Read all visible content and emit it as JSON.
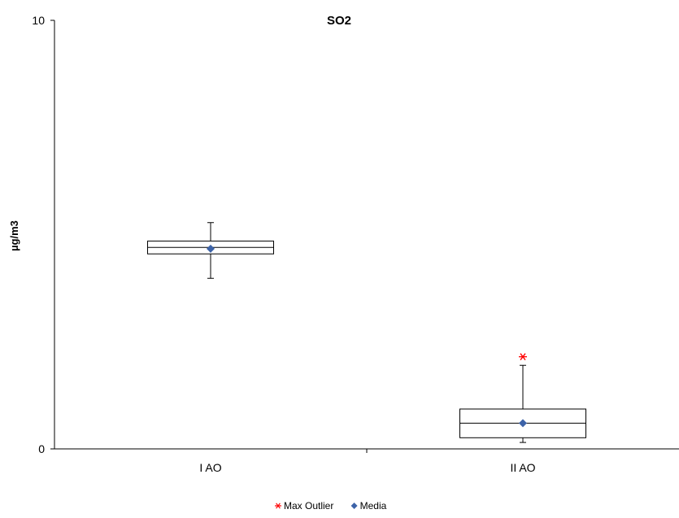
{
  "chart_data": {
    "type": "boxplot",
    "title": "SO2",
    "ylabel": "µg/m3",
    "ylim": [
      0,
      10
    ],
    "y_ticks": [
      "0",
      "10"
    ],
    "categories": [
      "I AO",
      "II AO"
    ],
    "boxes": [
      {
        "category": "I AO",
        "whisker_low": 3.98,
        "q1": 4.55,
        "median": 4.7,
        "q3": 4.85,
        "whisker_high": 5.28,
        "mean": 4.67,
        "max_outlier": null
      },
      {
        "category": "II AO",
        "whisker_low": 0.15,
        "q1": 0.26,
        "median": 0.6,
        "q3": 0.93,
        "whisker_high": 1.95,
        "mean": 0.6,
        "max_outlier": 2.15
      }
    ],
    "legend": {
      "position": "bottom-center",
      "items": [
        {
          "label": "Max Outlier",
          "marker": "asterisk",
          "color": "#ff0000"
        },
        {
          "label": "Media",
          "marker": "diamond",
          "color": "#3d63a8"
        }
      ]
    },
    "colors": {
      "box": "#000000",
      "mean": "#3d63a8",
      "outlier": "#ff0000"
    },
    "grid": false
  }
}
